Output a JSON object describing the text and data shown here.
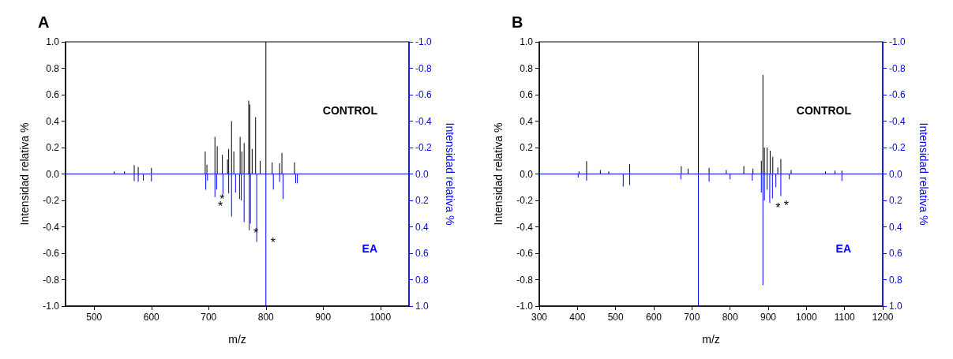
{
  "chart_data": [
    {
      "type": "bar",
      "title": "A",
      "xlabel": "m/z",
      "ylabel": "Intensidad relativa %",
      "y2label": "Intensidad relativa %",
      "xlim": [
        450,
        1050
      ],
      "xticks": [
        500,
        600,
        700,
        800,
        900,
        1000
      ],
      "ylim": [
        -1,
        1
      ],
      "yticks": [
        {
          "value": -1,
          "label": "-1.0"
        },
        {
          "value": -0.8,
          "label": "-0.8"
        },
        {
          "value": -0.6,
          "label": "-0.6"
        },
        {
          "value": -0.4,
          "label": "-0.4"
        },
        {
          "value": -0.2,
          "label": "-0.2"
        },
        {
          "value": 0,
          "label": "0.0"
        },
        {
          "value": 0.2,
          "label": "0.2"
        },
        {
          "value": 0.4,
          "label": "0.4"
        },
        {
          "value": 0.6,
          "label": "0.6"
        },
        {
          "value": 0.8,
          "label": "0.8"
        },
        {
          "value": 1,
          "label": "1.0"
        }
      ],
      "y2lim": [
        1,
        -1
      ],
      "y2ticks": [
        {
          "value": -1,
          "label": "-1.0"
        },
        {
          "value": -0.8,
          "label": "-0.8"
        },
        {
          "value": -0.6,
          "label": "-0.6"
        },
        {
          "value": -0.4,
          "label": "-0.4"
        },
        {
          "value": -0.2,
          "label": "-0.2"
        },
        {
          "value": 0,
          "label": "0.0"
        },
        {
          "value": 0.2,
          "label": "0.2"
        },
        {
          "value": 0.4,
          "label": "0.4"
        },
        {
          "value": 0.6,
          "label": "0.6"
        },
        {
          "value": 0.8,
          "label": "0.8"
        },
        {
          "value": 1,
          "label": "1.0"
        }
      ],
      "series": [
        {
          "name": "CONTROL",
          "color": "#000000",
          "x": [
            535,
            553,
            570,
            577,
            600,
            694,
            697,
            711,
            715,
            724,
            733,
            735,
            740,
            744,
            755,
            758,
            762,
            770,
            772,
            776,
            782,
            790,
            800,
            811,
            824,
            828,
            850
          ],
          "values": [
            0.02,
            0.02,
            0.067,
            0.052,
            0.047,
            0.17,
            0.07,
            0.28,
            0.21,
            0.145,
            0.11,
            0.19,
            0.4,
            0.17,
            0.28,
            0.17,
            0.235,
            0.555,
            0.525,
            0.19,
            0.43,
            0.1,
            1.0,
            0.088,
            0.08,
            0.16,
            0.088
          ]
        },
        {
          "name": "EA",
          "color": "#0000ff",
          "axis": "y2",
          "x": [
            570,
            577,
            586,
            600,
            695,
            698,
            711,
            714,
            725,
            735,
            740,
            747,
            754,
            757,
            762,
            771,
            773,
            784,
            800,
            813,
            824,
            830,
            852,
            855
          ],
          "values": [
            0.054,
            0.058,
            0.05,
            0.056,
            0.12,
            0.05,
            0.174,
            0.118,
            0.15,
            0.146,
            0.323,
            0.14,
            0.19,
            0.2,
            0.364,
            0.426,
            0.375,
            0.514,
            1.0,
            0.118,
            0.06,
            0.19,
            0.07,
            0.07
          ]
        }
      ],
      "ref_lines": [
        {
          "axis": "y2",
          "value": 0
        }
      ],
      "annotations": [
        {
          "text": "*",
          "x": 714,
          "y": -0.118
        },
        {
          "text": "*",
          "x": 711,
          "y": -0.174
        },
        {
          "text": "*",
          "x": 773,
          "y": -0.375
        },
        {
          "text": "*",
          "x": 803,
          "y": -0.446
        }
      ]
    },
    {
      "type": "bar",
      "title": "B",
      "xlabel": "m/z",
      "ylabel": "Intensidad relativa %",
      "y2label": "Intensidad relativa %",
      "xlim": [
        300,
        1200
      ],
      "xticks": [
        300,
        400,
        500,
        600,
        700,
        800,
        900,
        1000,
        1100,
        1200
      ],
      "ylim": [
        -1,
        1
      ],
      "yticks": [
        {
          "value": -1,
          "label": "-1.0"
        },
        {
          "value": -0.8,
          "label": "-0.8"
        },
        {
          "value": -0.6,
          "label": "-0.6"
        },
        {
          "value": -0.4,
          "label": "-0.4"
        },
        {
          "value": -0.2,
          "label": "-0.2"
        },
        {
          "value": 0,
          "label": "0.0"
        },
        {
          "value": 0.2,
          "label": "0.2"
        },
        {
          "value": 0.4,
          "label": "0.4"
        },
        {
          "value": 0.6,
          "label": "0.6"
        },
        {
          "value": 0.8,
          "label": "0.8"
        },
        {
          "value": 1,
          "label": "1.0"
        }
      ],
      "y2lim": [
        1,
        -1
      ],
      "y2ticks": [
        {
          "value": -1,
          "label": "-1.0"
        },
        {
          "value": -0.8,
          "label": "-0.8"
        },
        {
          "value": -0.6,
          "label": "-0.6"
        },
        {
          "value": -0.4,
          "label": "-0.4"
        },
        {
          "value": -0.2,
          "label": "-0.2"
        },
        {
          "value": 0,
          "label": "0.0"
        },
        {
          "value": 0.2,
          "label": "0.2"
        },
        {
          "value": 0.4,
          "label": "0.4"
        },
        {
          "value": 0.6,
          "label": "0.6"
        },
        {
          "value": 0.8,
          "label": "0.8"
        },
        {
          "value": 1,
          "label": "1.0"
        }
      ],
      "series": [
        {
          "name": "CONTROL",
          "color": "#000000",
          "x": [
            404,
            424,
            460,
            482,
            537,
            672,
            690,
            717,
            745,
            790,
            836,
            860,
            882,
            886,
            890,
            897,
            905,
            912,
            925,
            933,
            960,
            1050,
            1075,
            1093
          ],
          "values": [
            0.02,
            0.097,
            0.03,
            0.02,
            0.074,
            0.06,
            0.04,
            1.0,
            0.047,
            0.03,
            0.06,
            0.04,
            0.1,
            0.75,
            0.2,
            0.2,
            0.176,
            0.13,
            0.05,
            0.113,
            0.03,
            0.02,
            0.025,
            0.025
          ]
        },
        {
          "name": "EA",
          "color": "#0000ff",
          "axis": "y2",
          "x": [
            402,
            424,
            520,
            537,
            671,
            717,
            745,
            800,
            858,
            882,
            886,
            890,
            897,
            904,
            911,
            920,
            933,
            955,
            1093
          ],
          "values": [
            0.027,
            0.05,
            0.095,
            0.084,
            0.04,
            1.0,
            0.056,
            0.04,
            0.05,
            0.14,
            0.84,
            0.2,
            0.12,
            0.22,
            0.185,
            0.1,
            0.167,
            0.04,
            0.054
          ]
        }
      ],
      "ref_lines": [
        {
          "axis": "y2",
          "value": 0
        }
      ],
      "annotations": [
        {
          "text": "*",
          "x": 911,
          "y": -0.185
        },
        {
          "text": "*",
          "x": 933,
          "y": -0.167
        }
      ]
    }
  ]
}
